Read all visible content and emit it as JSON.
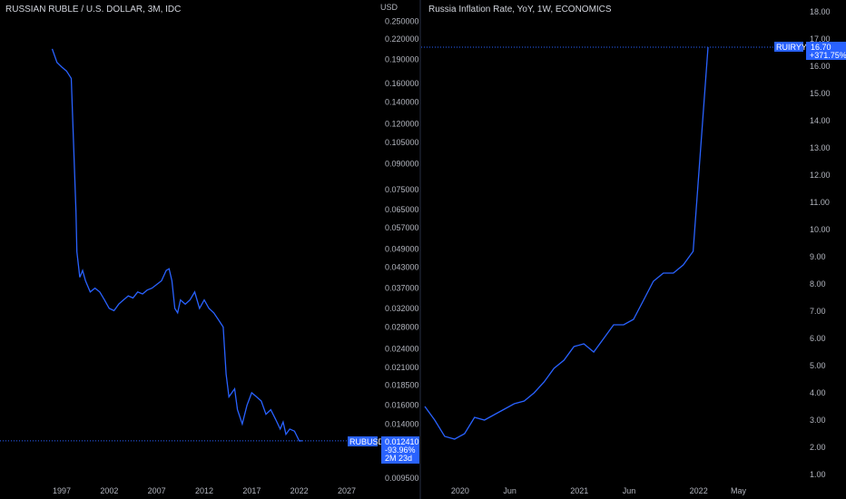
{
  "left_chart": {
    "title": "RUSSIAN RUBLE / U.S. DOLLAR, 3M, IDC",
    "currency": "USD",
    "badge": {
      "symbol": "RUBUSD",
      "value": "0.012410",
      "change": "-93.96%",
      "countdown": "2M 23d"
    },
    "colors": {
      "line": "#2962ff",
      "badge": "#2962ff"
    }
  },
  "right_chart": {
    "title": "Russia Inflation Rate, YoY, 1W, ECONOMICS",
    "badge": {
      "symbol": "RUIRYY",
      "value": "16.70",
      "change": "+371.75%"
    },
    "colors": {
      "line": "#2962ff",
      "badge": "#2962ff"
    }
  },
  "chart_data": [
    {
      "type": "line",
      "title": "RUSSIAN RUBLE / U.S. DOLLAR, 3M, IDC",
      "scale": "log",
      "x_ticks": [
        "1997",
        "2002",
        "2007",
        "2012",
        "2017",
        "2022",
        "2027"
      ],
      "y_ticks": [
        "0.250000",
        "0.220000",
        "0.190000",
        "0.160000",
        "0.140000",
        "0.120000",
        "0.105000",
        "0.090000",
        "0.075000",
        "0.065000",
        "0.057000",
        "0.049000",
        "0.043000",
        "0.037000",
        "0.032000",
        "0.028000",
        "0.024000",
        "0.021000",
        "0.018500",
        "0.016000",
        "0.014000",
        "0.009500"
      ],
      "series": [
        {
          "name": "RUBUSD",
          "x": [
            1996.0,
            1996.5,
            1997.0,
            1997.5,
            1998.0,
            1998.5,
            1998.6,
            1998.9,
            1999.2,
            1999.5,
            2000.0,
            2000.5,
            2001.0,
            2001.5,
            2002.0,
            2002.5,
            2003.0,
            2003.5,
            2004.0,
            2004.5,
            2005.0,
            2005.5,
            2006.0,
            2006.5,
            2007.0,
            2007.5,
            2008.0,
            2008.3,
            2008.6,
            2008.9,
            2009.2,
            2009.5,
            2010.0,
            2010.5,
            2011.0,
            2011.5,
            2012.0,
            2012.5,
            2013.0,
            2013.5,
            2014.0,
            2014.3,
            2014.6,
            2014.9,
            2015.2,
            2015.5,
            2016.0,
            2016.5,
            2017.0,
            2017.5,
            2018.0,
            2018.5,
            2019.0,
            2019.5,
            2020.0,
            2020.3,
            2020.6,
            2021.0,
            2021.5,
            2022.0,
            2022.3
          ],
          "values": [
            0.205,
            0.186,
            0.18,
            0.175,
            0.166,
            0.064,
            0.048,
            0.04,
            0.042,
            0.039,
            0.036,
            0.037,
            0.036,
            0.034,
            0.032,
            0.0315,
            0.033,
            0.034,
            0.035,
            0.0345,
            0.036,
            0.0355,
            0.0365,
            0.037,
            0.038,
            0.039,
            0.042,
            0.0425,
            0.039,
            0.032,
            0.031,
            0.034,
            0.033,
            0.034,
            0.036,
            0.032,
            0.034,
            0.032,
            0.031,
            0.0295,
            0.028,
            0.02,
            0.017,
            0.0175,
            0.018,
            0.0155,
            0.014,
            0.016,
            0.0175,
            0.017,
            0.0165,
            0.015,
            0.0155,
            0.0145,
            0.0135,
            0.0142,
            0.013,
            0.0135,
            0.0133,
            0.0124,
            0.01241
          ]
        }
      ]
    },
    {
      "type": "line",
      "title": "Russia Inflation Rate, YoY, 1W, ECONOMICS",
      "x_ticks": [
        "2020",
        "Jun",
        "2021",
        "Jun",
        "2022",
        "May"
      ],
      "y_ticks": [
        "18.00",
        "17.00",
        "16.00",
        "15.00",
        "14.00",
        "13.00",
        "12.00",
        "11.00",
        "10.00",
        "9.00",
        "8.00",
        "7.00",
        "6.00",
        "5.00",
        "4.00",
        "3.00",
        "2.00",
        "1.00"
      ],
      "series": [
        {
          "name": "RUIRYY",
          "x": [
            "2019-11",
            "2019-12",
            "2020-01",
            "2020-02",
            "2020-03",
            "2020-04",
            "2020-05",
            "2020-06",
            "2020-07",
            "2020-08",
            "2020-09",
            "2020-10",
            "2020-11",
            "2020-12",
            "2021-01",
            "2021-02",
            "2021-03",
            "2021-04",
            "2021-05",
            "2021-06",
            "2021-07",
            "2021-08",
            "2021-09",
            "2021-10",
            "2021-11",
            "2021-12",
            "2022-01",
            "2022-02",
            "2022-03"
          ],
          "values": [
            3.5,
            3.0,
            2.4,
            2.3,
            2.5,
            3.1,
            3.0,
            3.2,
            3.4,
            3.6,
            3.7,
            4.0,
            4.4,
            4.9,
            5.2,
            5.7,
            5.8,
            5.5,
            6.0,
            6.5,
            6.5,
            6.7,
            7.4,
            8.1,
            8.4,
            8.4,
            8.7,
            9.2,
            16.7
          ]
        }
      ]
    }
  ]
}
